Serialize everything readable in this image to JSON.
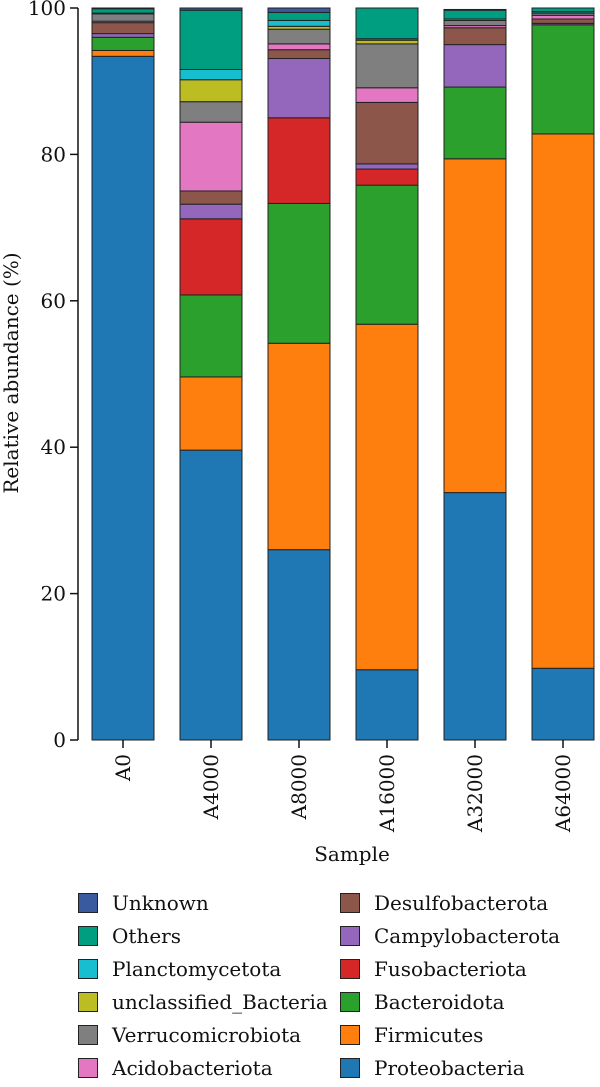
{
  "chart_data": {
    "type": "bar",
    "stacked": true,
    "xlabel": "Sample",
    "ylabel": "Relative abundance (%)",
    "ylim": [
      0,
      100
    ],
    "yticks": [
      0,
      20,
      40,
      60,
      80,
      100
    ],
    "categories": [
      "A0",
      "A4000",
      "A8000",
      "A16000",
      "A32000",
      "A64000"
    ],
    "series": [
      {
        "name": "Proteobacteria",
        "color": "#1f77b4",
        "values": [
          93.4,
          39.6,
          26.0,
          9.6,
          33.8,
          9.8
        ]
      },
      {
        "name": "Firmicutes",
        "color": "#ff7f0e",
        "values": [
          0.8,
          10.0,
          28.2,
          47.2,
          45.6,
          73.0
        ]
      },
      {
        "name": "Bacteroidota",
        "color": "#2ca02c",
        "values": [
          1.8,
          11.2,
          19.1,
          19.0,
          9.8,
          14.9
        ]
      },
      {
        "name": "Fusobacteriota",
        "color": "#d62728",
        "values": [
          0.0,
          10.4,
          11.7,
          2.2,
          0.0,
          0.0
        ]
      },
      {
        "name": "Campylobacterota",
        "color": "#9467bd",
        "values": [
          0.5,
          2.0,
          8.1,
          0.7,
          5.8,
          0.2
        ]
      },
      {
        "name": "Desulfobacterota",
        "color": "#8c564b",
        "values": [
          1.5,
          1.8,
          1.2,
          8.4,
          2.3,
          0.6
        ]
      },
      {
        "name": "Acidobacteriota",
        "color": "#e377c2",
        "values": [
          0.2,
          9.4,
          0.8,
          2.0,
          0.3,
          0.5
        ]
      },
      {
        "name": "Verrucomicrobiota",
        "color": "#7f7f7f",
        "values": [
          1.0,
          2.8,
          2.0,
          6.0,
          0.7,
          0.3
        ]
      },
      {
        "name": "unclassified_Bacteria",
        "color": "#bcbd22",
        "values": [
          0.0,
          3.0,
          0.4,
          0.5,
          0.0,
          0.0
        ]
      },
      {
        "name": "Planctomycetota",
        "color": "#17becf",
        "values": [
          0.1,
          1.4,
          0.8,
          0.2,
          0.2,
          0.2
        ]
      },
      {
        "name": "Others",
        "color": "#009e80",
        "values": [
          0.6,
          8.1,
          1.1,
          4.2,
          1.2,
          0.5
        ]
      },
      {
        "name": "Unknown",
        "color": "#3a5aa0",
        "values": [
          0.1,
          0.3,
          0.6,
          0.0,
          0.1,
          0.0
        ]
      }
    ],
    "legend": {
      "position": "bottom",
      "columns": [
        [
          "Unknown",
          "Others",
          "Planctomycetota",
          "unclassified_Bacteria",
          "Verrucomicrobiota",
          "Acidobacteriota"
        ],
        [
          "Desulfobacterota",
          "Campylobacterota",
          "Fusobacteriota",
          "Bacteroidota",
          "Firmicutes",
          "Proteobacteria"
        ]
      ]
    }
  }
}
